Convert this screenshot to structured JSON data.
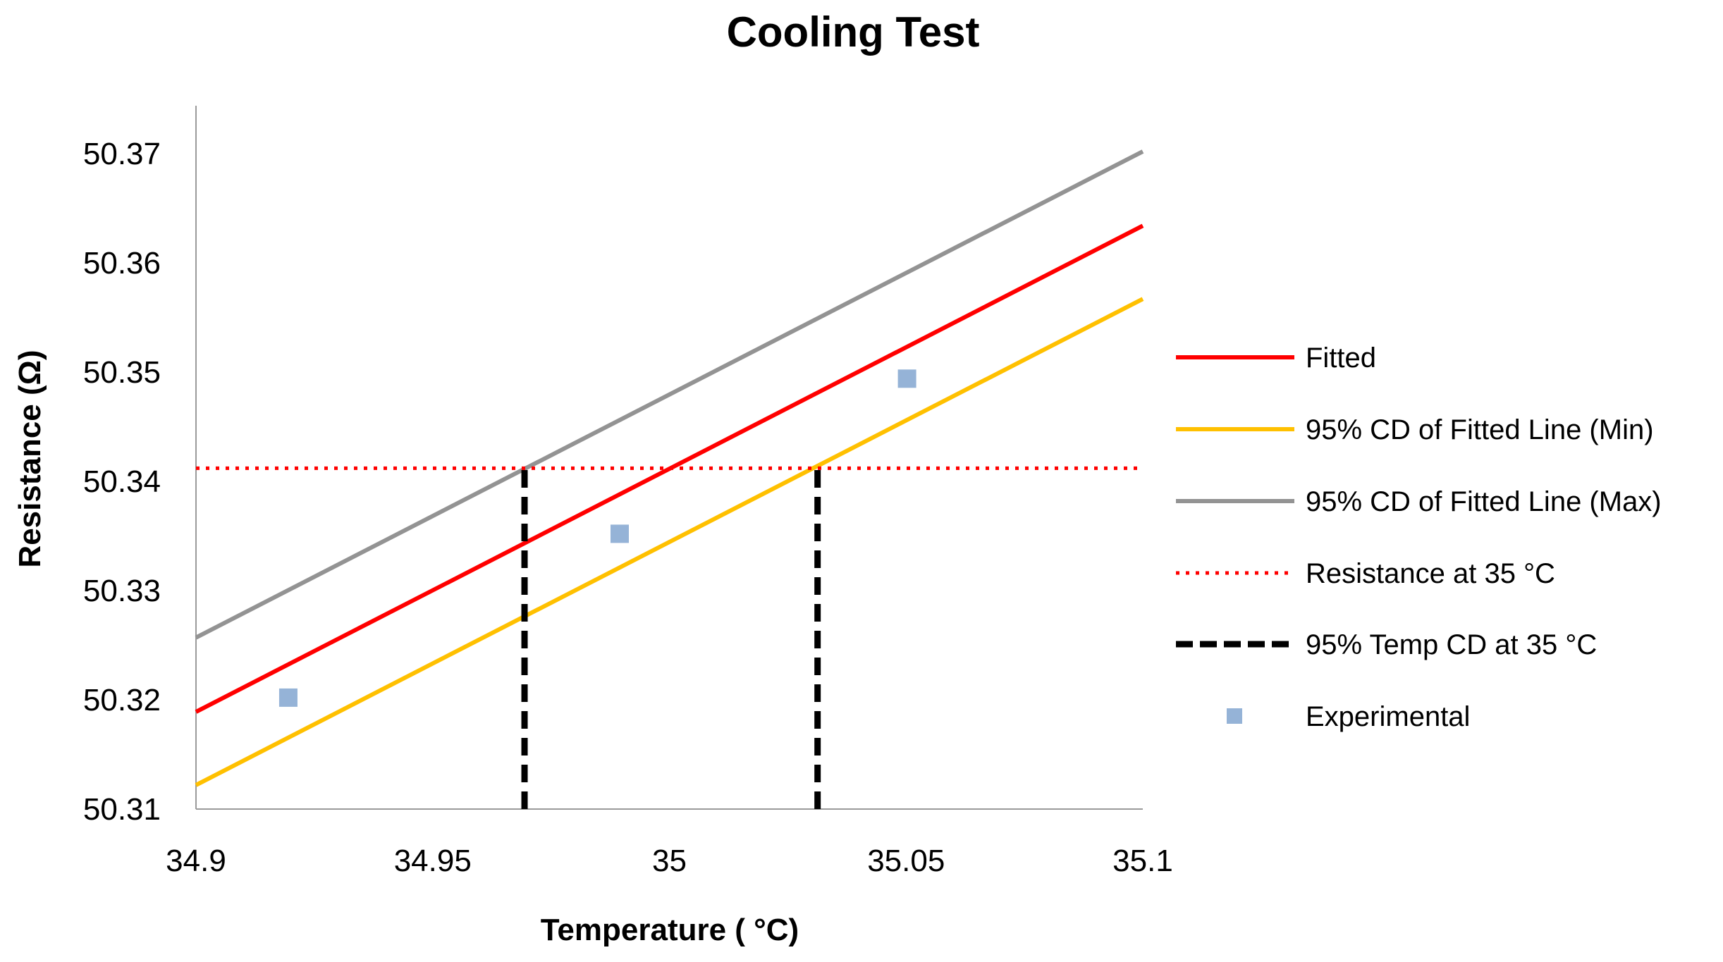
{
  "chart_data": {
    "type": "line",
    "title": "Cooling Test",
    "xlabel": "Temperature ( °C)",
    "ylabel": "Resistance (Ω)",
    "xlim": [
      34.9,
      35.1
    ],
    "ylim": [
      50.31,
      50.375
    ],
    "xticks": [
      34.9,
      34.95,
      35,
      35.05,
      35.1
    ],
    "xtick_labels": [
      "34.9",
      "34.95",
      "35",
      "35.05",
      "35.1"
    ],
    "yticks": [
      50.31,
      50.32,
      50.33,
      50.34,
      50.35,
      50.36,
      50.37
    ],
    "ytick_labels": [
      "50.31",
      "50.32",
      "50.33",
      "50.34",
      "50.35",
      "50.36",
      "50.37"
    ],
    "grid": false,
    "legend_position": "right",
    "series": [
      {
        "name": "Fitted",
        "kind": "line",
        "color": "#ff0000",
        "style": "solid",
        "x": [
          34.9,
          35.1
        ],
        "y": [
          50.3189,
          50.3634
        ]
      },
      {
        "name": "95% CD of Fitted Line (Min)",
        "kind": "line",
        "color": "#ffc000",
        "style": "solid",
        "x": [
          34.9,
          35.1
        ],
        "y": [
          50.3122,
          50.3567
        ]
      },
      {
        "name": "95% CD of Fitted Line (Max)",
        "kind": "line",
        "color": "#939393",
        "style": "solid",
        "x": [
          34.9,
          35.1
        ],
        "y": [
          50.3257,
          50.3702
        ]
      },
      {
        "name": "Resistance at 35 °C",
        "kind": "line",
        "color": "#ff0000",
        "style": "dotted",
        "x": [
          34.9,
          35.1
        ],
        "y": [
          50.3412,
          50.3412
        ]
      },
      {
        "name": "95% Temp CD at 35 °C",
        "kind": "line",
        "color": "#000000",
        "style": "dashed",
        "segments": [
          {
            "x": [
              34.9694,
              34.9694
            ],
            "y": [
              50.31,
              50.3412
            ]
          },
          {
            "x": [
              35.0313,
              35.0313
            ],
            "y": [
              50.31,
              50.3412
            ]
          }
        ]
      },
      {
        "name": "Experimental",
        "kind": "scatter",
        "color": "#95b3d7",
        "marker": "square",
        "x": [
          34.9195,
          34.9895,
          35.0502
        ],
        "y": [
          50.3202,
          50.3352,
          50.3494
        ]
      }
    ]
  }
}
